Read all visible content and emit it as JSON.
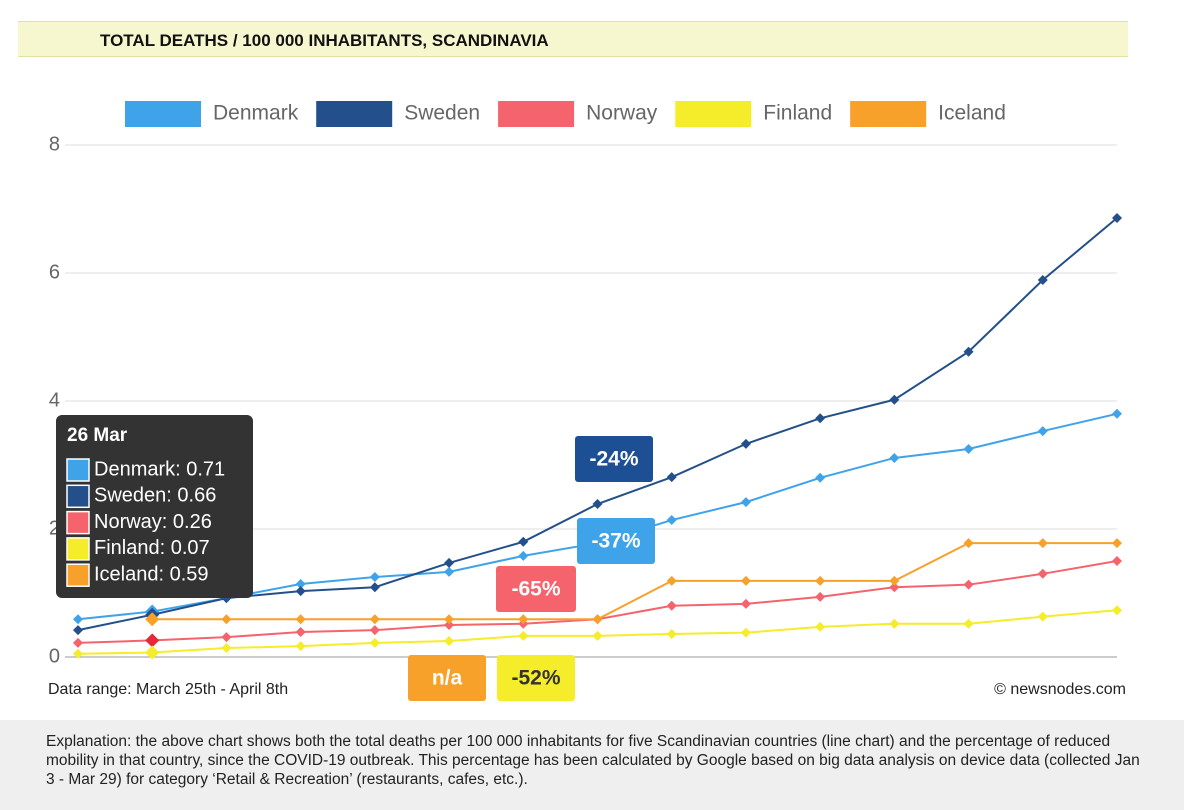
{
  "header": {
    "title": "TOTAL DEATHS / 100 000 INHABITANTS, SCANDINAVIA"
  },
  "chart_data": {
    "type": "line",
    "categories": [
      null,
      null,
      null,
      null,
      null,
      null,
      null,
      null,
      null,
      null,
      null,
      null,
      null,
      null,
      null
    ],
    "series": [
      {
        "name": "Denmark",
        "color": "#3fa3ea",
        "values": [
          0.59,
          0.71,
          0.92,
          1.14,
          1.25,
          1.33,
          1.58,
          1.78,
          2.14,
          2.42,
          2.8,
          3.11,
          3.25,
          3.53,
          3.8
        ]
      },
      {
        "name": "Sweden",
        "color": "#23508a",
        "values": [
          0.42,
          0.66,
          0.92,
          1.03,
          1.09,
          1.47,
          1.8,
          2.39,
          2.81,
          3.33,
          3.73,
          4.02,
          4.77,
          5.89,
          6.86
        ]
      },
      {
        "name": "Norway",
        "color": "#f5636c",
        "values": [
          0.22,
          0.26,
          0.31,
          0.39,
          0.42,
          0.5,
          0.52,
          0.59,
          0.8,
          0.83,
          0.94,
          1.09,
          1.13,
          1.3,
          1.5
        ]
      },
      {
        "name": "Finland",
        "color": "#f5ec2a",
        "values": [
          0.05,
          0.07,
          0.14,
          0.17,
          0.22,
          0.25,
          0.33,
          0.33,
          0.36,
          0.38,
          0.47,
          0.52,
          0.52,
          0.63,
          0.73
        ]
      },
      {
        "name": "Iceland",
        "color": "#f7a02a",
        "values": [
          null,
          0.59,
          0.59,
          0.59,
          0.59,
          0.59,
          0.59,
          0.59,
          1.19,
          1.19,
          1.19,
          1.19,
          1.78,
          1.78,
          1.78
        ]
      }
    ],
    "ylim": [
      0,
      8
    ],
    "yticks": [
      0,
      2,
      4,
      6,
      8
    ],
    "grid": true,
    "annotations": [
      {
        "text": "-24%",
        "color": "#1d4f94"
      },
      {
        "text": "-37%",
        "color": "#3fa3ea"
      },
      {
        "text": "-65%",
        "color": "#f5636c"
      },
      {
        "text": "n/a",
        "color": "#f7a02a"
      },
      {
        "text": "-52%",
        "color": "#f5ec2a"
      }
    ],
    "tooltip": {
      "title": "26 Mar",
      "items": [
        "Denmark: 0.71",
        "Sweden: 0.66",
        "Norway: 0.26",
        "Finland: 0.07",
        "Iceland: 0.59"
      ]
    },
    "notes": {
      "range": "Data range: March 25th - April 8th",
      "credit": "© newsnodes.com"
    }
  },
  "footer": {
    "text": "Explanation: the above chart shows both the total deaths per 100 000 inhabitants for five Scandinavian countries (line chart) and the percentage of reduced mobility in that country, since the COVID-19 outbreak. This percentage has been calculated by Google based on big data analysis on device data (collected Jan 3 - Mar 29) for category ‘Retail & Recreation’ (restaurants, cafes, etc.)."
  }
}
